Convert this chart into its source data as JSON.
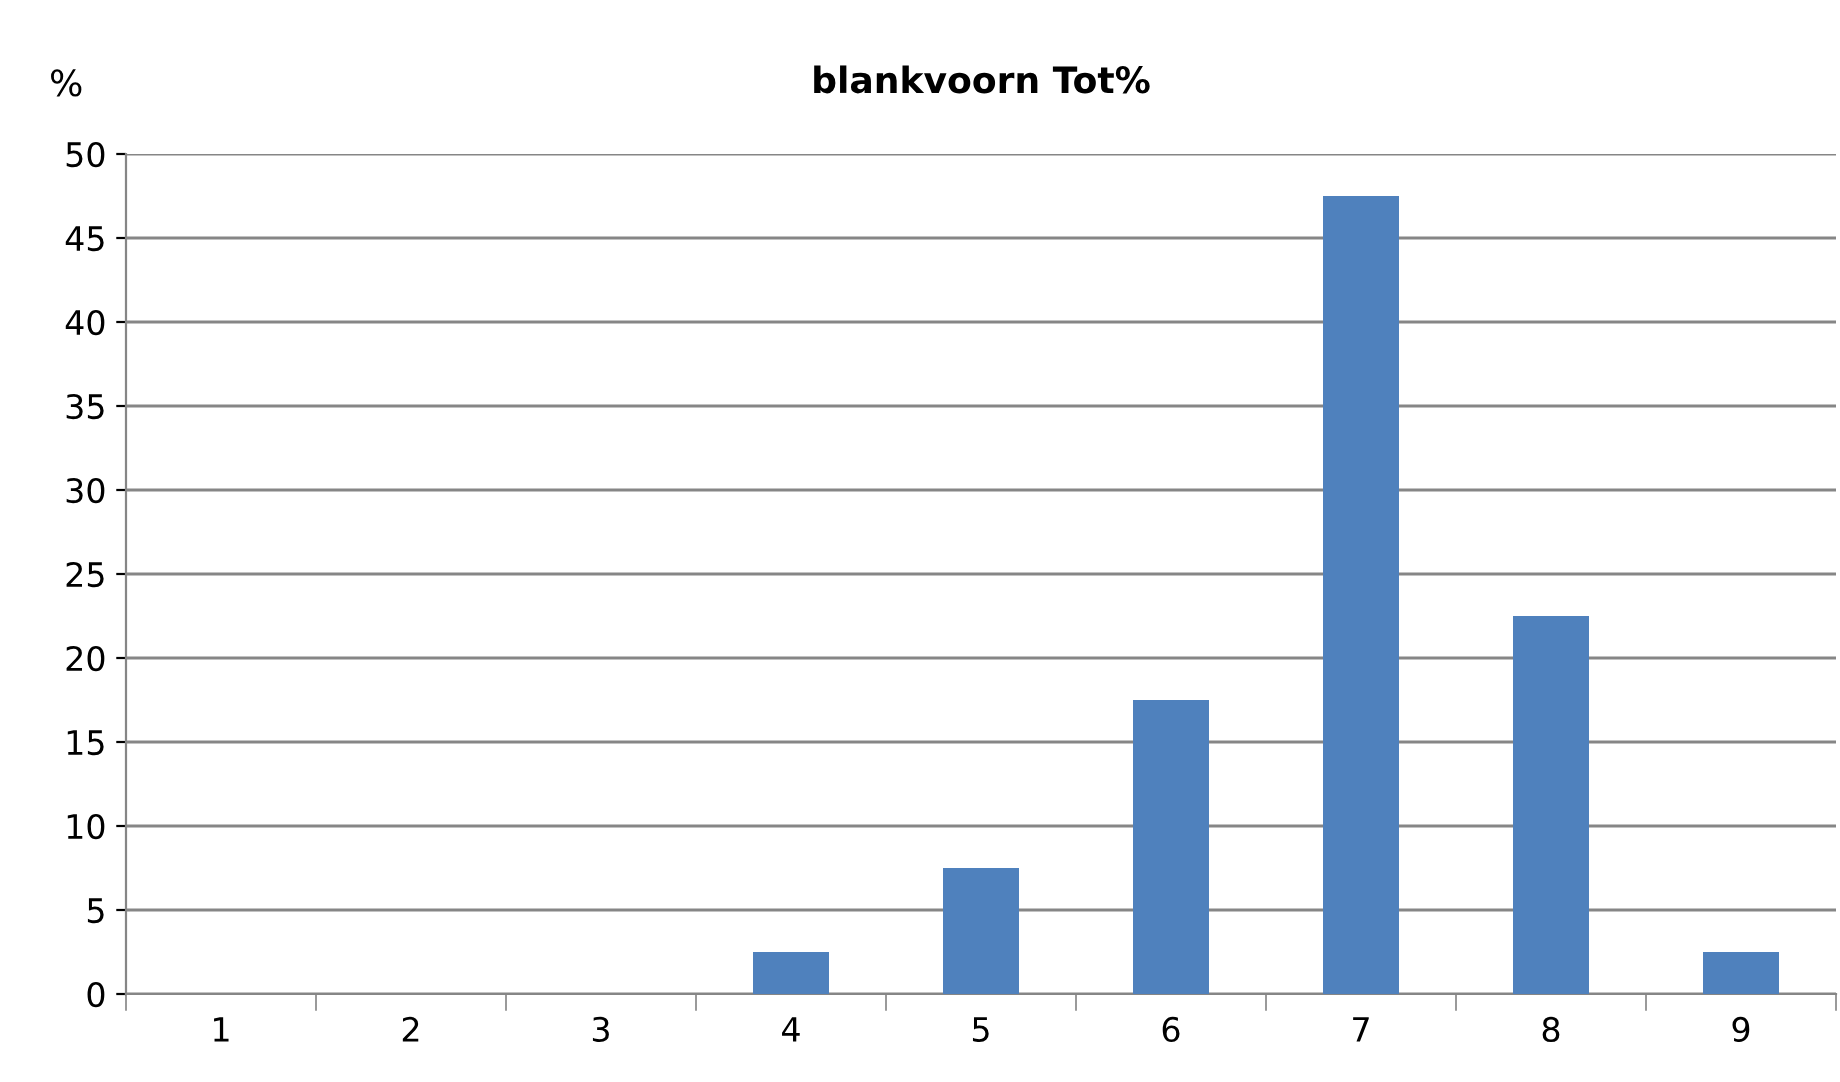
{
  "chart_data": {
    "type": "bar",
    "title": "blankvoorn Tot%",
    "ylabel": "%",
    "categories": [
      "1",
      "2",
      "3",
      "4",
      "5",
      "6",
      "7",
      "8",
      "9"
    ],
    "values": [
      0,
      0,
      0,
      2.5,
      7.5,
      17.5,
      47.5,
      22.5,
      2.5
    ],
    "color": "#4f81bd",
    "ylim": [
      0,
      50
    ],
    "yticks": [
      0,
      5,
      10,
      15,
      20,
      25,
      30,
      35,
      40,
      45,
      50
    ],
    "grid": "y",
    "legend": false
  }
}
